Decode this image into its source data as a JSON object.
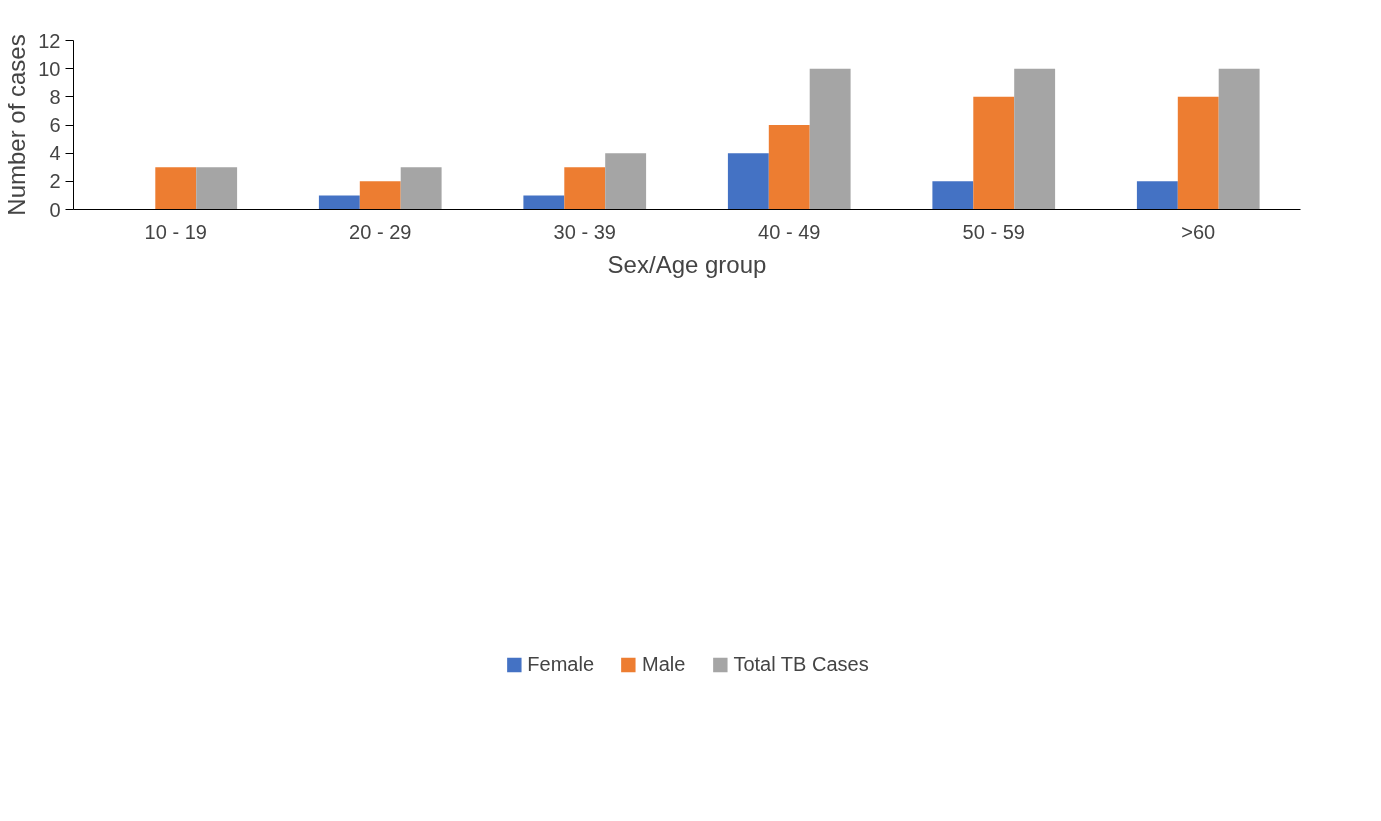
{
  "chart_data": {
    "type": "bar",
    "xlabel": "Sex/Age group",
    "ylabel": "Number of cases",
    "categories": [
      "10 - 19",
      "20 - 29",
      "30 - 39",
      "40 - 49",
      "50 - 59",
      ">60"
    ],
    "series": [
      {
        "name": "Female",
        "color": "#4472c4",
        "values": [
          0,
          1,
          1,
          4,
          2,
          2
        ]
      },
      {
        "name": "Male",
        "color": "#ed7d31",
        "values": [
          3,
          2,
          3,
          6,
          8,
          8
        ]
      },
      {
        "name": "Total TB Cases",
        "color": "#a5a5a5",
        "values": [
          3,
          3,
          4,
          10,
          10,
          10
        ]
      }
    ],
    "ylim": [
      0,
      12
    ],
    "yticks": [
      0,
      2,
      4,
      6,
      8,
      10,
      12
    ],
    "grid": false,
    "legend": "bottom"
  }
}
